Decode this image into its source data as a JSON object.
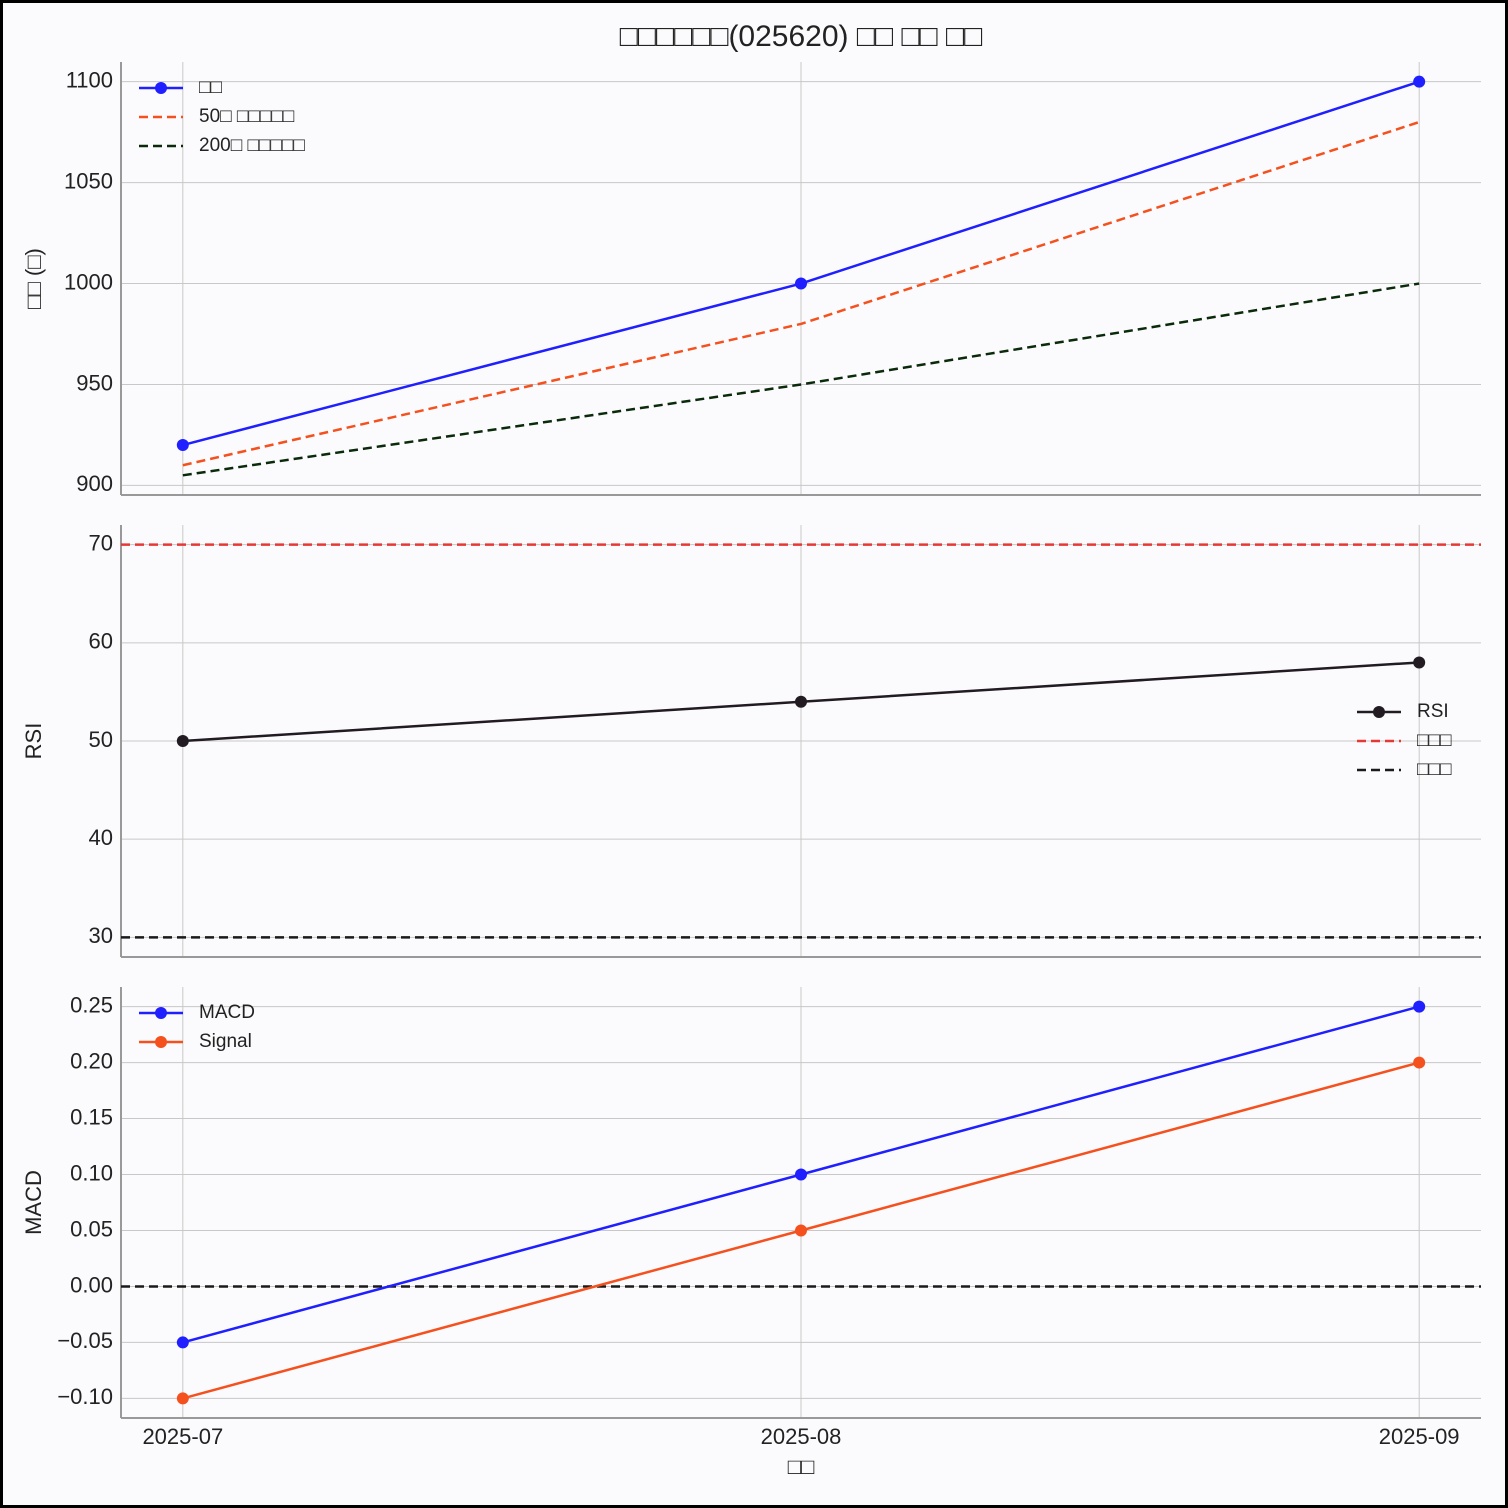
{
  "chart_data": [
    {
      "type": "line",
      "title": "□□□□□□(025620) □□ □□ □□",
      "y_label": "□□ (□)",
      "ylim": [
        895.25,
        1109.75
      ],
      "yticks": [
        900,
        950,
        1000,
        1050,
        1100
      ],
      "grid": true,
      "legend": "upper left",
      "series": [
        {
          "name": "□□",
          "color": "#1f1fff",
          "values": [
            920,
            1000,
            1100
          ],
          "marker": true,
          "dash": false
        },
        {
          "name": "50□ □□□□□",
          "color": "#f4511e",
          "values": [
            910,
            980,
            1080
          ],
          "marker": false,
          "dash": true
        },
        {
          "name": "200□ □□□□□",
          "color": "#0b2a0b",
          "values": [
            905,
            950,
            1000
          ],
          "marker": false,
          "dash": true
        }
      ]
    },
    {
      "type": "line",
      "y_label": "RSI",
      "ylim": [
        28,
        72
      ],
      "yticks": [
        30,
        40,
        50,
        60,
        70
      ],
      "grid": true,
      "legend": "center right",
      "series": [
        {
          "name": "RSI",
          "color": "#221c22",
          "values": [
            50,
            54,
            58
          ],
          "marker": true,
          "dash": false
        }
      ],
      "hlines": [
        {
          "name": "□□□",
          "color": "#e53935",
          "value": 70
        },
        {
          "name": "□□□",
          "color": "#1a1a1a",
          "value": 30
        }
      ]
    },
    {
      "type": "line",
      "y_label": "MACD",
      "x_label": "□□",
      "categories": [
        "2025-07",
        "2025-08",
        "2025-09"
      ],
      "ylim": [
        -0.1175,
        0.2675
      ],
      "yticks": [
        {
          "value": -0.1,
          "label": "−0.10"
        },
        {
          "value": -0.05,
          "label": "−0.05"
        },
        {
          "value": 0,
          "label": "0.00"
        },
        {
          "value": 0.05,
          "label": "0.05"
        },
        {
          "value": 0.1,
          "label": "0.10"
        },
        {
          "value": 0.15,
          "label": "0.15"
        },
        {
          "value": 0.2,
          "label": "0.20"
        },
        {
          "value": 0.25,
          "label": "0.25"
        }
      ],
      "grid": true,
      "legend": "upper left",
      "series": [
        {
          "name": "MACD",
          "color": "#1f1fff",
          "values": [
            -0.05,
            0.1,
            0.25
          ],
          "marker": true,
          "dash": false
        },
        {
          "name": "Signal",
          "color": "#f4511e",
          "values": [
            -0.1,
            0.05,
            0.2
          ],
          "marker": true,
          "dash": false
        }
      ],
      "hlines": [
        {
          "color": "#1a1a1a",
          "value": 0
        }
      ]
    }
  ]
}
